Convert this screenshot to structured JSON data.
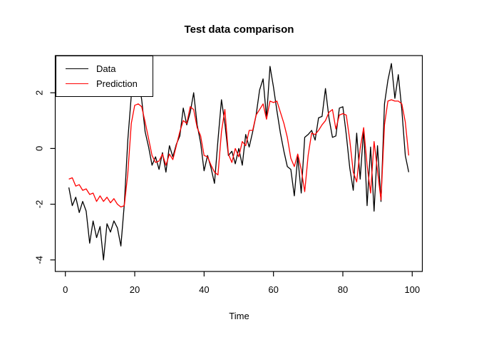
{
  "title": "Test data comparison",
  "x_axis": {
    "label": "Time",
    "tick_labels": [
      "0",
      "20",
      "40",
      "60",
      "80",
      "100"
    ]
  },
  "y_axis": {
    "tick_labels": [
      "-4",
      "-2",
      "0",
      "2"
    ]
  },
  "legend": {
    "items": [
      {
        "label": "Data",
        "color": "#000000"
      },
      {
        "label": "Prediction",
        "color": "#FF0000"
      }
    ]
  },
  "chart_data": {
    "type": "line",
    "title": "Test data comparison",
    "xlabel": "Time",
    "ylabel": "",
    "xlim": [
      0,
      100
    ],
    "ylim": [
      -4.35,
      3.35
    ],
    "x_ticks": [
      0,
      20,
      40,
      60,
      80,
      100
    ],
    "y_ticks": [
      -4,
      -2,
      0,
      2
    ],
    "grid": false,
    "legend_position": "topleft",
    "x_start": 1,
    "x_step": 1,
    "series": [
      {
        "name": "Data",
        "color": "#000000",
        "values": [
          -1.4,
          -2.05,
          -1.75,
          -2.3,
          -1.9,
          -2.25,
          -3.4,
          -2.6,
          -3.2,
          -2.8,
          -4.0,
          -2.7,
          -3.0,
          -2.6,
          -2.85,
          -3.5,
          -2.0,
          0.3,
          1.9,
          2.4,
          2.55,
          1.75,
          0.6,
          0.05,
          -0.6,
          -0.3,
          -0.75,
          -0.15,
          -0.85,
          0.1,
          -0.3,
          0.15,
          0.45,
          1.45,
          0.85,
          1.3,
          2.0,
          0.85,
          0.2,
          -0.8,
          -0.25,
          -0.7,
          -1.25,
          0.3,
          1.75,
          0.9,
          -0.25,
          -0.1,
          -0.55,
          0.0,
          -0.6,
          0.5,
          0.05,
          0.6,
          1.2,
          2.1,
          2.5,
          1.1,
          2.95,
          2.2,
          1.35,
          0.55,
          -0.1,
          -0.65,
          -0.75,
          -1.7,
          -0.3,
          -1.6,
          0.4,
          0.5,
          0.65,
          0.3,
          1.1,
          1.15,
          2.15,
          1.1,
          0.4,
          0.45,
          1.45,
          1.5,
          0.5,
          -0.7,
          -1.5,
          0.55,
          -1.1,
          0.7,
          -2.05,
          0.05,
          -2.25,
          0.1,
          -1.9,
          1.6,
          2.45,
          3.05,
          1.8,
          2.65,
          1.4,
          -0.25,
          -0.85
        ]
      },
      {
        "name": "Prediction",
        "color": "#FF0000",
        "values": [
          -1.1,
          -1.05,
          -1.35,
          -1.3,
          -1.5,
          -1.45,
          -1.65,
          -1.6,
          -1.9,
          -1.7,
          -1.9,
          -1.75,
          -1.95,
          -1.8,
          -2.0,
          -2.1,
          -2.05,
          -0.9,
          0.9,
          1.55,
          1.6,
          1.5,
          0.95,
          0.35,
          -0.25,
          -0.5,
          -0.45,
          -0.2,
          -0.6,
          -0.2,
          -0.4,
          0.1,
          0.6,
          1.0,
          0.9,
          1.5,
          1.4,
          0.75,
          0.45,
          -0.25,
          -0.3,
          -0.6,
          -0.85,
          -0.95,
          0.6,
          1.4,
          -0.2,
          -0.5,
          0.0,
          -0.3,
          0.25,
          0.1,
          0.65,
          0.65,
          1.2,
          1.4,
          1.6,
          1.05,
          1.7,
          1.65,
          1.7,
          1.3,
          0.9,
          0.4,
          -0.35,
          -0.65,
          -0.2,
          -0.75,
          -1.55,
          -0.25,
          0.55,
          0.5,
          0.65,
          0.85,
          1.0,
          1.3,
          1.4,
          0.7,
          1.2,
          1.25,
          1.2,
          0.3,
          -0.85,
          -1.2,
          0.0,
          0.75,
          -0.6,
          -1.6,
          0.25,
          -0.8,
          -1.85,
          0.85,
          1.7,
          1.75,
          1.7,
          1.7,
          1.6,
          0.95,
          -0.25
        ]
      }
    ]
  }
}
